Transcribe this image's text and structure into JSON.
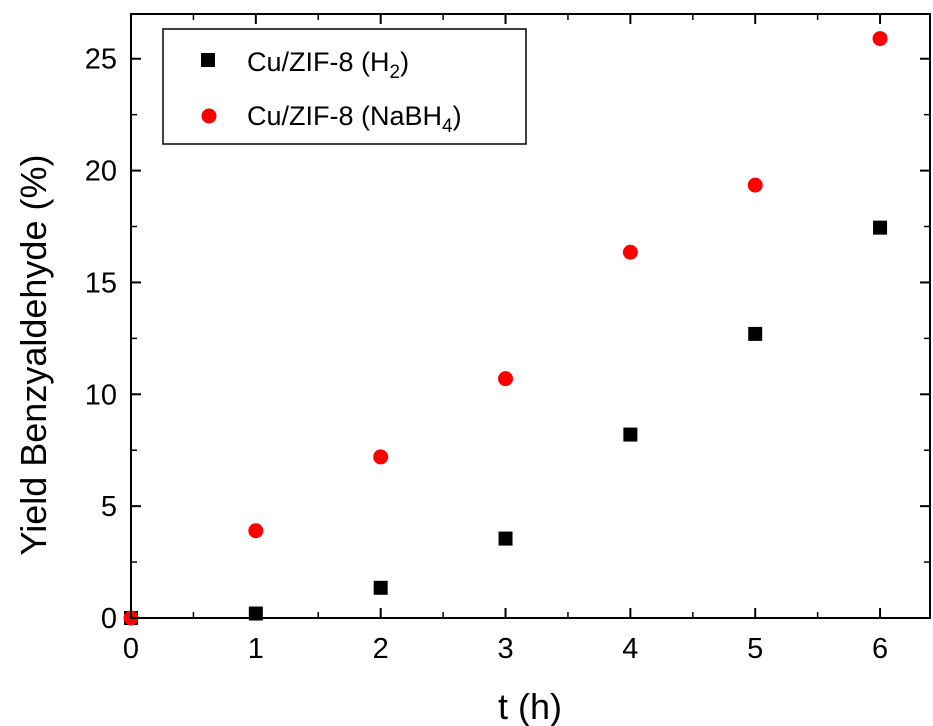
{
  "chart_data": {
    "type": "scatter",
    "title": "",
    "xlabel": "t (h)",
    "ylabel": "Yield Benzyaldehyde (%)",
    "xlim": [
      0,
      6.4
    ],
    "ylim": [
      0,
      27
    ],
    "xticks": [
      0,
      1,
      2,
      3,
      4,
      5,
      6
    ],
    "yticks": [
      0,
      5,
      10,
      15,
      20,
      25
    ],
    "grid": false,
    "legend_placement": "top-left",
    "series": [
      {
        "name": "Cu/ZIF-8 (H2)",
        "legend": {
          "base": "Cu/ZIF-8 (H",
          "sub": "2",
          "tail": ")"
        },
        "marker": "square",
        "color": "#000000",
        "x": [
          0,
          1,
          2,
          3,
          4,
          5,
          6
        ],
        "y": [
          0,
          0.2,
          1.35,
          3.55,
          8.2,
          12.7,
          17.45
        ]
      },
      {
        "name": "Cu/ZIF-8 (NaBH4)",
        "legend": {
          "base": "Cu/ZIF-8 (NaBH",
          "sub": "4",
          "tail": ")"
        },
        "marker": "circle",
        "color": "#ff0000",
        "x": [
          0,
          1,
          2,
          3,
          4,
          5,
          6
        ],
        "y": [
          0,
          3.9,
          7.2,
          10.7,
          16.35,
          19.35,
          25.9
        ]
      }
    ]
  }
}
